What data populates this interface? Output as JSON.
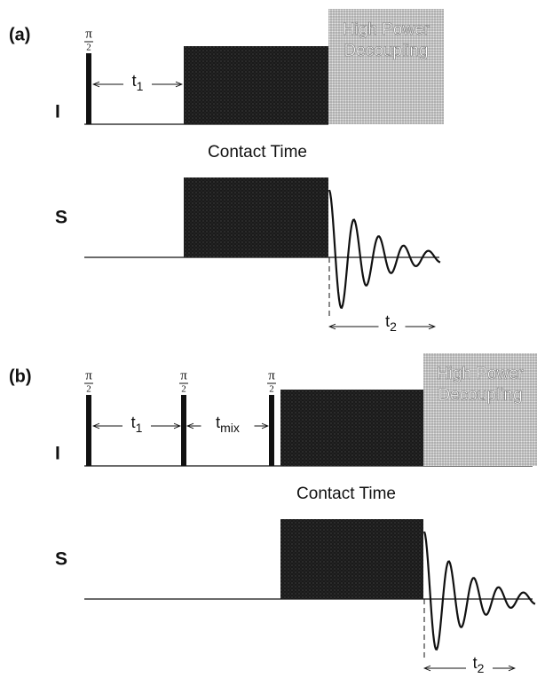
{
  "panels": [
    {
      "label": "(a)",
      "channels": [
        "I",
        "S"
      ],
      "pulses": [
        {
          "numerator": "π",
          "denominator": "2"
        }
      ],
      "delays": [
        {
          "base": "t",
          "sub": "1"
        }
      ],
      "contact": "Contact Time",
      "decoupling": [
        "High Power",
        "Decoupling"
      ],
      "acquisition": {
        "base": "t",
        "sub": "2"
      }
    },
    {
      "label": "(b)",
      "channels": [
        "I",
        "S"
      ],
      "pulses": [
        {
          "numerator": "π",
          "denominator": "2"
        },
        {
          "numerator": "π",
          "denominator": "2"
        },
        {
          "numerator": "π",
          "denominator": "2"
        }
      ],
      "delays": [
        {
          "base": "t",
          "sub": "1"
        },
        {
          "base": "t",
          "sub": "mix"
        }
      ],
      "contact": "Contact Time",
      "decoupling": [
        "High Power",
        "Decoupling"
      ],
      "acquisition": {
        "base": "t",
        "sub": "2"
      }
    }
  ]
}
